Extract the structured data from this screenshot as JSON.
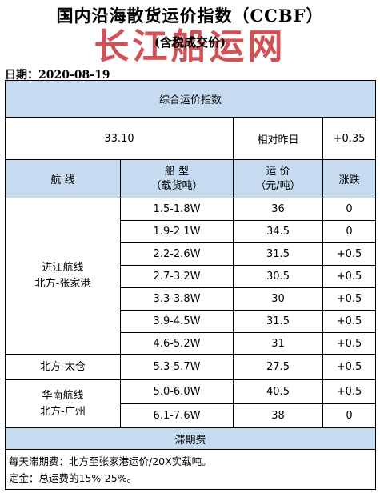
{
  "header": {
    "title": "国内沿海散货运价指数（CCBF）",
    "subtitle": "(含税成交价)",
    "watermark": "长江船运网",
    "date_label": "日期：",
    "date_value": "2020-08-19"
  },
  "summary": {
    "section_title": "综合运价指数",
    "index_value": "33.10",
    "compare_label": "相对昨日",
    "change": "+0.35"
  },
  "columns": {
    "route": "航  线",
    "ship_type_line1": "船  型",
    "ship_type_line2": "（载货吨）",
    "price_line1": "运  价",
    "price_line2": "（元/吨）",
    "change": "涨跌"
  },
  "groups": [
    {
      "route_line1": "进江航线",
      "route_line2": "北方-张家港",
      "rows": [
        {
          "ship": "1.5-1.8W",
          "price": "36",
          "change": "0"
        },
        {
          "ship": "1.9-2.1W",
          "price": "34.5",
          "change": "0"
        },
        {
          "ship": "2.2-2.6W",
          "price": "31.5",
          "change": "+0.5"
        },
        {
          "ship": "2.7-3.2W",
          "price": "30.5",
          "change": "+0.5"
        },
        {
          "ship": "3.3-3.8W",
          "price": "30",
          "change": "+0.5"
        },
        {
          "ship": "3.9-4.5W",
          "price": "31.5",
          "change": "+0.5"
        },
        {
          "ship": "4.6-5.2W",
          "price": "31",
          "change": "+0.5"
        }
      ]
    },
    {
      "route_line1": "北方-太仓",
      "route_line2": "",
      "rows": [
        {
          "ship": "5.3-5.7W",
          "price": "27.5",
          "change": "+0.5"
        }
      ]
    },
    {
      "route_line1": "华南航线",
      "route_line2": "北方-广州",
      "rows": [
        {
          "ship": "5.0-6.0W",
          "price": "40.5",
          "change": "+0.5"
        },
        {
          "ship": "6.1-7.6W",
          "price": "38",
          "change": "0"
        }
      ]
    }
  ],
  "demurrage": {
    "section_title": "滞期费",
    "note_line1": "每天滞期费：北方至张家港运价/20X实载吨。",
    "note_line2": "定金：总运费的15%-25%。"
  }
}
